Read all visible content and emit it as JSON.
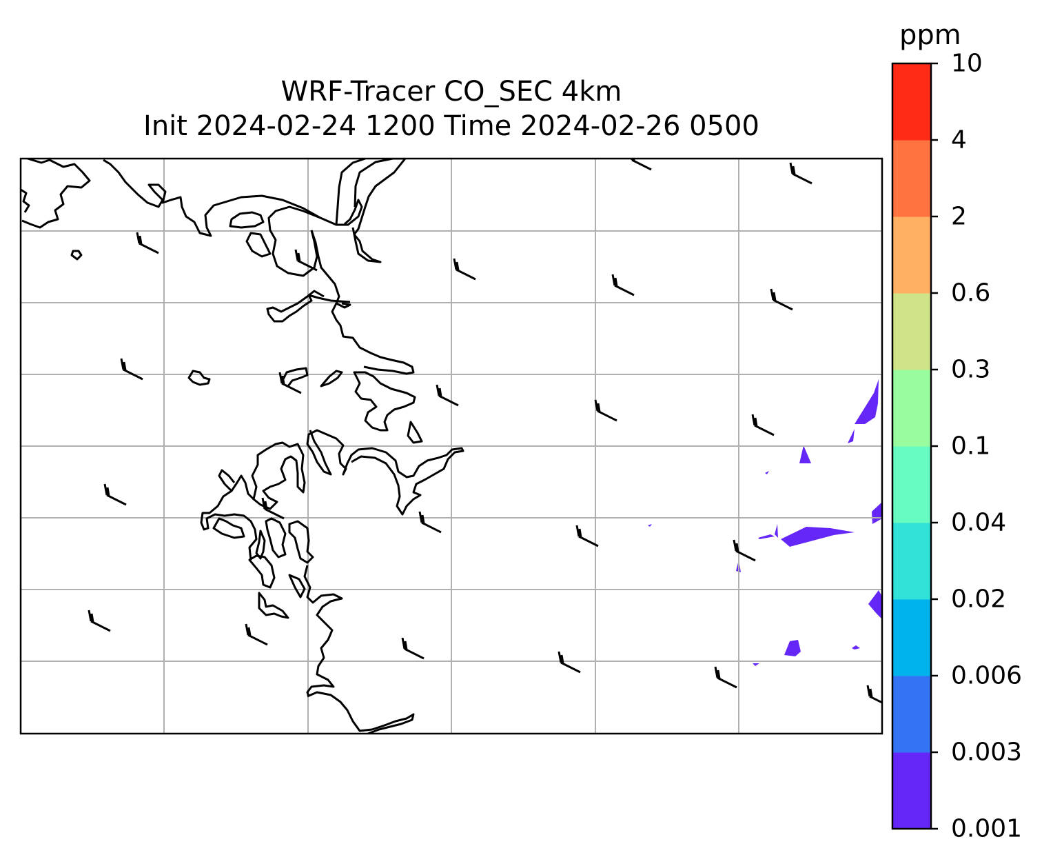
{
  "title": {
    "line1": "WRF-Tracer CO_SEC 4km",
    "line2": "Init 2024-02-24 1200 Time 2024-02-26 0500"
  },
  "colorbar": {
    "unit": "ppm",
    "levels": [
      "0.001",
      "0.003",
      "0.006",
      "0.02",
      "0.04",
      "0.1",
      "0.3",
      "0.6",
      "2",
      "4",
      "10"
    ],
    "colors": [
      "#6427f8",
      "#3373f4",
      "#00b3ed",
      "#30e2d7",
      "#66fbc1",
      "#99fda0",
      "#cfe389",
      "#ffb063",
      "#ff7340",
      "#ff2b17"
    ]
  },
  "map": {
    "grid": "on",
    "wind_barbs": "on",
    "tracer_color": "#6427f8",
    "coastline_color": "#000000",
    "grid_color": "#b0b0b0"
  }
}
